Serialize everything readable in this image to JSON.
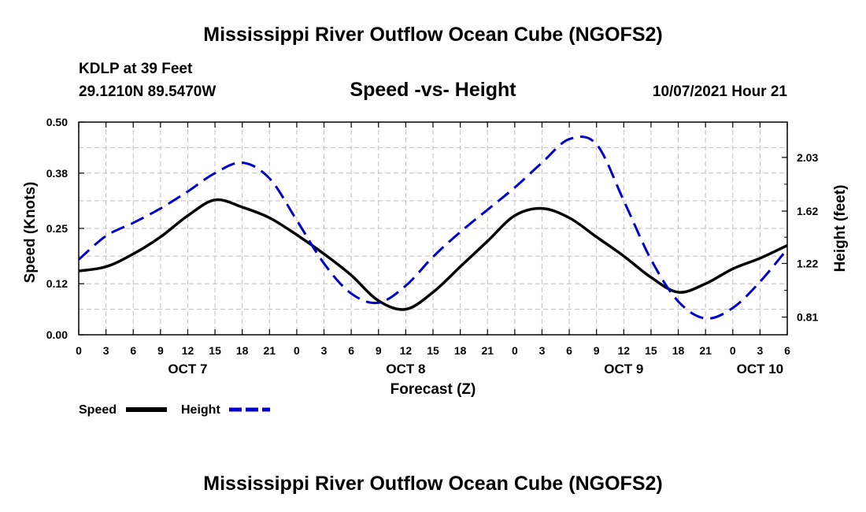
{
  "header": {
    "title": "Mississippi River Outflow Ocean Cube (NGOFS2)",
    "station": "KDLP at 39 Feet",
    "coords": "29.1210N  89.5470W",
    "subtitle": "Speed -vs- Height",
    "datetime": "10/07/2021 Hour 21"
  },
  "footer": {
    "title": "Mississippi River Outflow Ocean Cube (NGOFS2)"
  },
  "chart_data": {
    "type": "line",
    "title": "Speed -vs- Height",
    "xlabel": "Forecast (Z)",
    "ylabel": "Speed (Knots)",
    "y2label": "Height (feet)",
    "xlim": [
      0,
      78
    ],
    "ylim": [
      0,
      0.5
    ],
    "y2lim": [
      0.675,
      2.3
    ],
    "x_ticks": [
      0,
      3,
      6,
      9,
      12,
      15,
      18,
      21,
      24,
      27,
      30,
      33,
      36,
      39,
      42,
      45,
      48,
      51,
      54,
      57,
      60,
      63,
      66,
      69,
      72,
      75,
      78
    ],
    "x_tick_labels": [
      "0",
      "3",
      "6",
      "9",
      "12",
      "15",
      "18",
      "21",
      "0",
      "3",
      "6",
      "9",
      "12",
      "15",
      "18",
      "21",
      "0",
      "3",
      "6",
      "9",
      "12",
      "15",
      "18",
      "21",
      "0",
      "3",
      "6"
    ],
    "day_labels": [
      {
        "x": 12,
        "label": "OCT 7"
      },
      {
        "x": 36,
        "label": "OCT 8"
      },
      {
        "x": 60,
        "label": "OCT 9"
      },
      {
        "x": 75,
        "label": "OCT 10"
      }
    ],
    "y_ticks": [
      0.0,
      0.12,
      0.25,
      0.38,
      0.5
    ],
    "y_tick_labels": [
      "0.00",
      "0.12",
      "0.25",
      "0.38",
      "0.50"
    ],
    "y2_ticks": [
      0.81,
      1.22,
      1.62,
      2.03
    ],
    "y2_tick_labels": [
      "0.81",
      "1.22",
      "1.62",
      "2.03"
    ],
    "grid": true,
    "legend": [
      {
        "name": "Speed",
        "color": "#000000",
        "style": "solid"
      },
      {
        "name": "Height",
        "color": "#0000cc",
        "style": "dashed"
      }
    ],
    "series": [
      {
        "name": "Speed",
        "axis": "left",
        "color": "#000000",
        "x": [
          0,
          3,
          6,
          9,
          12,
          15,
          18,
          21,
          24,
          27,
          30,
          33,
          36,
          39,
          42,
          45,
          48,
          51,
          54,
          57,
          60,
          63,
          66,
          69,
          72,
          75,
          78
        ],
        "y": [
          0.15,
          0.16,
          0.19,
          0.23,
          0.28,
          0.317,
          0.3,
          0.275,
          0.235,
          0.19,
          0.14,
          0.08,
          0.06,
          0.1,
          0.16,
          0.22,
          0.28,
          0.297,
          0.275,
          0.23,
          0.185,
          0.135,
          0.1,
          0.12,
          0.155,
          0.18,
          0.21
        ]
      },
      {
        "name": "Height",
        "axis": "right",
        "color": "#0000cc",
        "x": [
          0,
          3,
          6,
          9,
          12,
          15,
          18,
          21,
          24,
          27,
          30,
          33,
          36,
          39,
          42,
          45,
          48,
          51,
          54,
          57,
          60,
          63,
          66,
          69,
          72,
          75,
          78
        ],
        "y": [
          1.25,
          1.43,
          1.53,
          1.64,
          1.77,
          1.91,
          1.99,
          1.87,
          1.55,
          1.22,
          0.99,
          0.92,
          1.05,
          1.27,
          1.46,
          1.63,
          1.8,
          1.99,
          2.17,
          2.13,
          1.7,
          1.25,
          0.93,
          0.8,
          0.88,
          1.08,
          1.33
        ]
      }
    ]
  }
}
